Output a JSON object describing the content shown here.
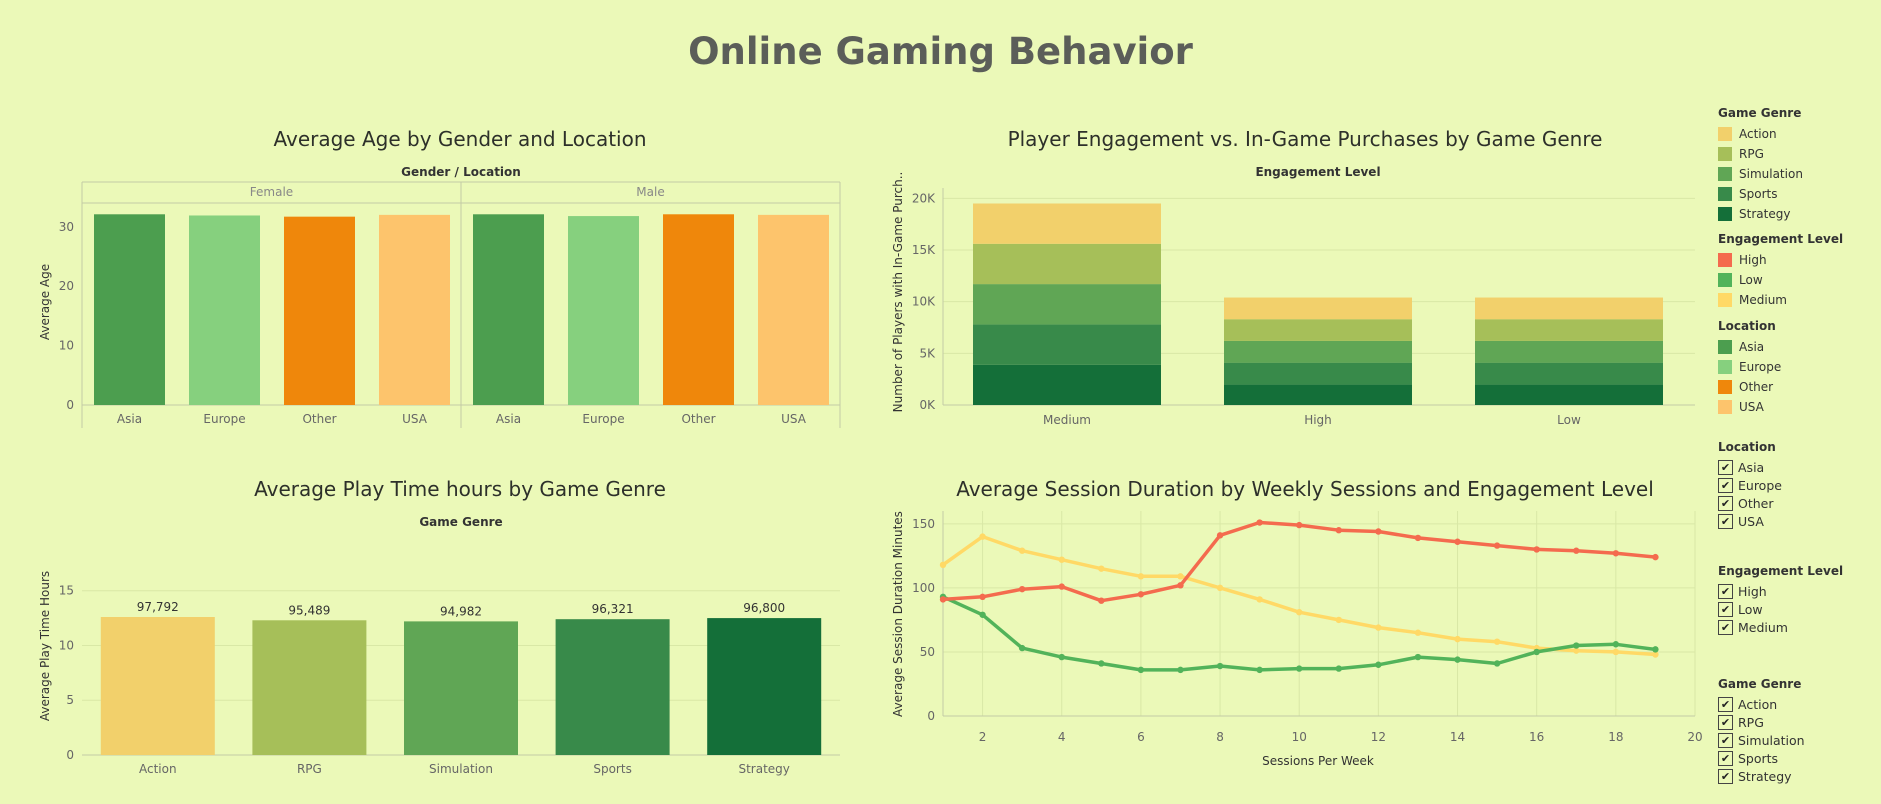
{
  "page": {
    "title": "Online Gaming Behavior"
  },
  "charts": {
    "age": {
      "title": "Average Age by Gender and Location",
      "header": "Gender  /  Location",
      "ylabel": "Average Age",
      "ticks": [
        "0",
        "10",
        "20",
        "30"
      ]
    },
    "engagement": {
      "title": "Player Engagement vs. In-Game Purchases by Game Genre",
      "header": "Engagement Level",
      "ylabel": "Number of Players with In-Game Purch..",
      "ticks": [
        "0K",
        "5K",
        "10K",
        "15K",
        "20K"
      ]
    },
    "playtime": {
      "title": "Average Play Time hours by Game Genre",
      "header": "Game Genre",
      "ylabel": "Average Play Time Hours",
      "ticks": [
        "0",
        "5",
        "10",
        "15"
      ]
    },
    "session": {
      "title": "Average Session Duration by Weekly Sessions and Engagement Level",
      "xlabel": "Sessions Per Week",
      "ylabel": "Average Session Duration Minutes",
      "yticks": [
        "0",
        "50",
        "100",
        "150"
      ],
      "xticks": [
        "2",
        "4",
        "6",
        "8",
        "10",
        "12",
        "14",
        "16",
        "18",
        "20"
      ]
    }
  },
  "colors": {
    "genre": {
      "Action": "#f2d06b",
      "RPG": "#a6bf59",
      "Simulation": "#60a655",
      "Sports": "#388a4a",
      "Strategy": "#146f39"
    },
    "engagement": {
      "High": "#f46b4e",
      "Low": "#52b35a",
      "Medium": "#ffd966"
    },
    "location": {
      "Asia": "#4c9e4f",
      "Europe": "#86d07e",
      "Other": "#ef870b",
      "USA": "#fdc46c"
    }
  },
  "legends": {
    "genre": {
      "title": "Game Genre",
      "items": [
        "Action",
        "RPG",
        "Simulation",
        "Sports",
        "Strategy"
      ]
    },
    "engagement": {
      "title": "Engagement Level",
      "items": [
        "High",
        "Low",
        "Medium"
      ]
    },
    "location": {
      "title": "Location",
      "items": [
        "Asia",
        "Europe",
        "Other",
        "USA"
      ]
    }
  },
  "filters": {
    "location": {
      "title": "Location",
      "items": [
        "Asia",
        "Europe",
        "Other",
        "USA"
      ]
    },
    "engagement": {
      "title": "Engagement Level",
      "items": [
        "High",
        "Low",
        "Medium"
      ]
    },
    "genre": {
      "title": "Game Genre",
      "items": [
        "Action",
        "RPG",
        "Simulation",
        "Sports",
        "Strategy"
      ]
    }
  },
  "chart_data": [
    {
      "type": "bar",
      "title": "Average Age by Gender and Location",
      "ylabel": "Average Age",
      "ylim": [
        0,
        34
      ],
      "groups": [
        {
          "name": "Female",
          "categories": [
            "Asia",
            "Europe",
            "Other",
            "USA"
          ],
          "values": [
            32.1,
            31.9,
            31.7,
            32.0
          ]
        },
        {
          "name": "Male",
          "categories": [
            "Asia",
            "Europe",
            "Other",
            "USA"
          ],
          "values": [
            32.1,
            31.8,
            32.1,
            32.0
          ]
        }
      ]
    },
    {
      "type": "bar",
      "stacked": true,
      "title": "Player Engagement vs. In-Game Purchases by Game Genre",
      "xlabel": "Engagement Level",
      "ylabel": "Number of Players with In-Game Purch..",
      "ylim": [
        0,
        21000
      ],
      "categories": [
        "Medium",
        "High",
        "Low"
      ],
      "series": [
        {
          "name": "Strategy",
          "values": [
            3900,
            2000,
            2000
          ]
        },
        {
          "name": "Sports",
          "values": [
            3900,
            2100,
            2100
          ]
        },
        {
          "name": "Simulation",
          "values": [
            3900,
            2100,
            2100
          ]
        },
        {
          "name": "RPG",
          "values": [
            3900,
            2100,
            2100
          ]
        },
        {
          "name": "Action",
          "values": [
            3900,
            2100,
            2100
          ]
        }
      ]
    },
    {
      "type": "bar",
      "title": "Average Play Time hours by Game Genre",
      "xlabel": "Game Genre",
      "ylabel": "Average Play Time Hours",
      "ylim": [
        0,
        15.5
      ],
      "categories": [
        "Action",
        "RPG",
        "Simulation",
        "Sports",
        "Strategy"
      ],
      "values": [
        12.6,
        12.3,
        12.2,
        12.4,
        12.5
      ],
      "labels": [
        "97,792",
        "95,489",
        "94,982",
        "96,321",
        "96,800"
      ]
    },
    {
      "type": "line",
      "title": "Average Session Duration by Weekly Sessions and Engagement Level",
      "xlabel": "Sessions Per Week",
      "ylabel": "Average Session Duration Minutes",
      "xlim": [
        1,
        20
      ],
      "ylim": [
        0,
        160
      ],
      "series": [
        {
          "name": "High",
          "x": [
            1,
            2,
            3,
            4,
            5,
            6,
            7,
            8,
            9,
            10,
            11,
            12,
            13,
            14,
            15,
            16,
            17,
            18,
            19
          ],
          "values": [
            91,
            93,
            99,
            101,
            90,
            95,
            102,
            141,
            151,
            149,
            145,
            144,
            139,
            136,
            133,
            130,
            129,
            127,
            124
          ]
        },
        {
          "name": "Low",
          "x": [
            1,
            2,
            3,
            4,
            5,
            6,
            7,
            8,
            9,
            10,
            11,
            12,
            13,
            14,
            15,
            16,
            17,
            18,
            19
          ],
          "values": [
            93,
            79,
            53,
            46,
            41,
            36,
            36,
            39,
            36,
            37,
            37,
            40,
            46,
            44,
            41,
            50,
            55,
            56,
            52
          ]
        },
        {
          "name": "Medium",
          "x": [
            1,
            2,
            3,
            4,
            5,
            6,
            7,
            8,
            9,
            10,
            11,
            12,
            13,
            14,
            15,
            16,
            17,
            18,
            19
          ],
          "values": [
            118,
            140,
            129,
            122,
            115,
            109,
            109,
            100,
            91,
            81,
            75,
            69,
            65,
            60,
            58,
            53,
            51,
            50,
            48
          ]
        }
      ]
    }
  ]
}
